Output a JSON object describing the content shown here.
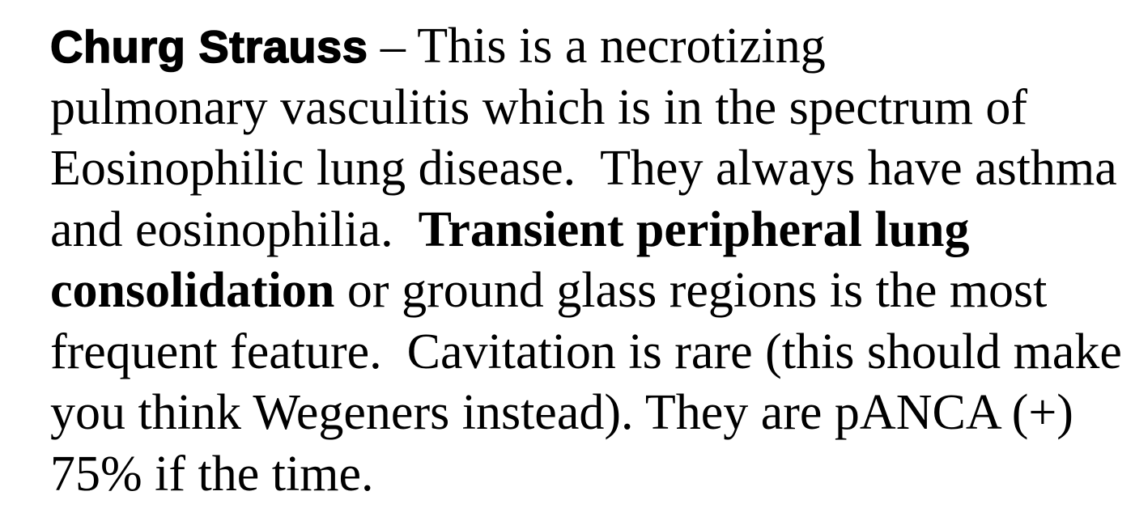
{
  "document": {
    "heading_term": "Churg Strauss",
    "lines": [
      " – This is a necrotizing",
      "pulmonary vasculitis which is in the spectrum of",
      "Eosinophilic lung disease.  They always have asthma",
      "and eosinophilia.  ",
      "Transient peripheral lung",
      "consolidation",
      " or ground glass regions is the most",
      "frequent feature.  Cavitation is rare (this should make",
      "you think Wegeners instead). They are pANCA (+)",
      "75% if the time."
    ]
  }
}
